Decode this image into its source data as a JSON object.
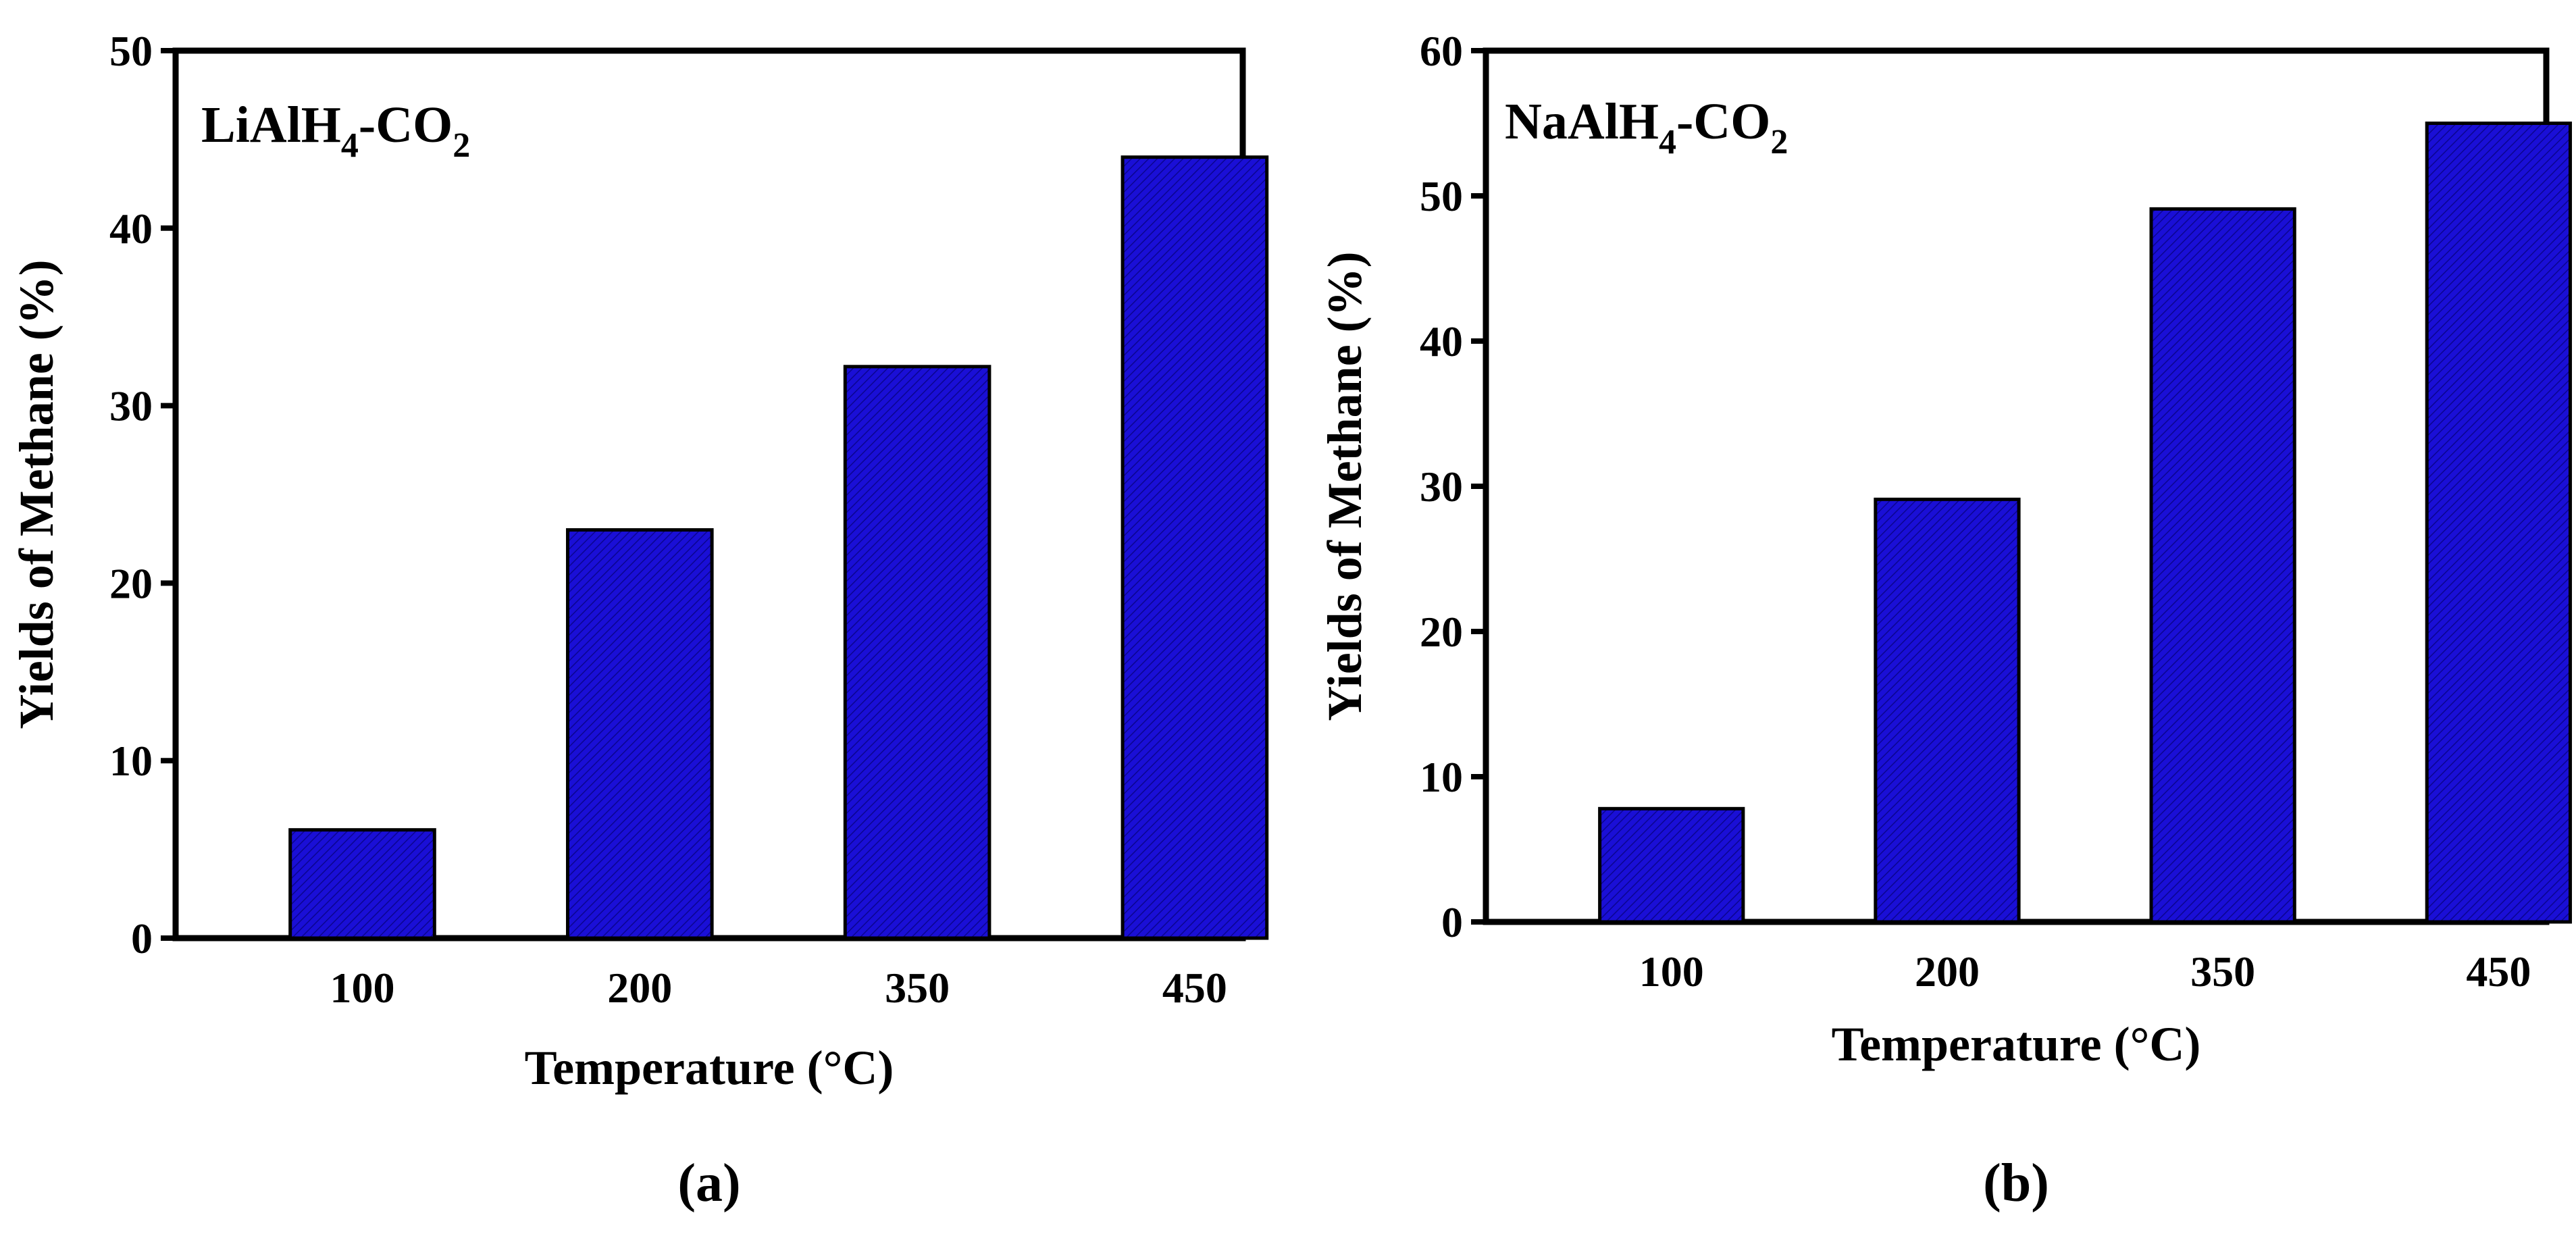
{
  "chart_data": [
    {
      "type": "bar",
      "panel_label": "(a)",
      "title": {
        "pre": "LiAlH",
        "sub1": "4",
        "mid": "-CO",
        "sub2": "2"
      },
      "categories": [
        "100",
        "200",
        "350",
        "450"
      ],
      "values": [
        6.1,
        23.0,
        32.2,
        44.0
      ],
      "xlabel": "Temperature (°C)",
      "ylabel": "Yields of Methane (%)",
      "ylim": [
        0,
        50
      ],
      "yticks": [
        0,
        10,
        20,
        30,
        40,
        50
      ],
      "grid": false,
      "bar_color": "#1a0fd6",
      "legend": "none"
    },
    {
      "type": "bar",
      "panel_label": "(b)",
      "title": {
        "pre": "NaAlH",
        "sub1": "4",
        "mid": "-CO",
        "sub2": "2"
      },
      "categories": [
        "100",
        "200",
        "350",
        "450"
      ],
      "values": [
        7.8,
        29.1,
        49.1,
        55.0
      ],
      "xlabel": "Temperature (°C)",
      "ylabel": "Yields of Methane (%)",
      "ylim": [
        0,
        60
      ],
      "yticks": [
        0,
        10,
        20,
        30,
        40,
        50,
        60
      ],
      "grid": false,
      "bar_color": "#1a0fd6",
      "legend": "none"
    }
  ]
}
